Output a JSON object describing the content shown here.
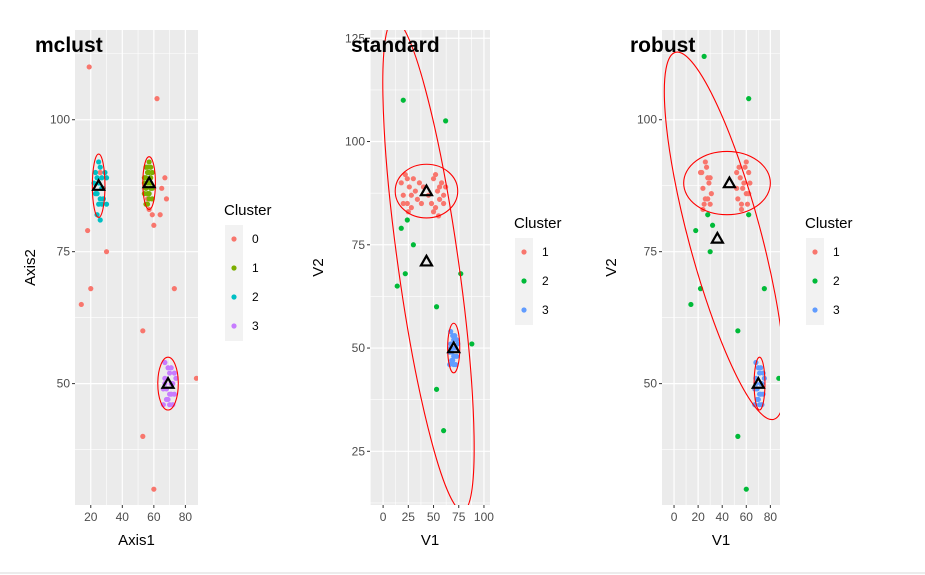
{
  "chart_data": [
    {
      "type": "scatter",
      "title": "mclust",
      "xlabel": "Axis1",
      "ylabel": "Axis2",
      "xlim": [
        10,
        88
      ],
      "ylim": [
        27,
        117
      ],
      "xticks": [
        20,
        40,
        60,
        80
      ],
      "yticks": [
        50,
        75,
        100
      ],
      "grid": true,
      "legend_title": "Cluster",
      "legend_placement": "right",
      "clusters": [
        {
          "name": "0",
          "color": "#F8766D",
          "points": [
            [
              19,
              110
            ],
            [
              62,
              104
            ],
            [
              14,
              65
            ],
            [
              18,
              79
            ],
            [
              20,
              68
            ],
            [
              30,
              75
            ],
            [
              53,
              60
            ],
            [
              65,
              87
            ],
            [
              67,
              89
            ],
            [
              68,
              85
            ],
            [
              73,
              68
            ],
            [
              87,
              51
            ],
            [
              53,
              40
            ],
            [
              60,
              30
            ],
            [
              57,
              83
            ],
            [
              56,
              85
            ],
            [
              59,
              82
            ],
            [
              60,
              80
            ],
            [
              64,
              82
            ],
            [
              26,
              90
            ]
          ]
        },
        {
          "name": "1",
          "color": "#7CAE00",
          "points": [
            [
              54,
              89
            ],
            [
              55,
              87
            ],
            [
              56,
              91
            ],
            [
              57,
              86
            ],
            [
              58,
              88
            ],
            [
              59,
              85
            ],
            [
              55,
              84
            ],
            [
              56,
              90
            ],
            [
              57,
              92
            ],
            [
              58,
              89
            ],
            [
              54,
              86
            ],
            [
              55,
              91
            ],
            [
              56,
              88
            ],
            [
              57,
              85
            ],
            [
              58,
              87
            ],
            [
              59,
              90
            ],
            [
              55,
              89
            ],
            [
              56,
              86
            ],
            [
              57,
              88
            ],
            [
              58,
              91
            ],
            [
              54,
              88
            ],
            [
              59,
              87
            ],
            [
              56,
              84
            ],
            [
              57,
              90
            ]
          ]
        },
        {
          "name": "2",
          "color": "#00BFC4",
          "points": [
            [
              23,
              86
            ],
            [
              24,
              89
            ],
            [
              25,
              84
            ],
            [
              26,
              91
            ],
            [
              27,
              87
            ],
            [
              28,
              85
            ],
            [
              29,
              90
            ],
            [
              24,
              82
            ],
            [
              25,
              88
            ],
            [
              26,
              85
            ],
            [
              27,
              89
            ],
            [
              23,
              90
            ],
            [
              28,
              87
            ],
            [
              30,
              84
            ],
            [
              22,
              88
            ],
            [
              25,
              92
            ],
            [
              26,
              81
            ],
            [
              27,
              84
            ],
            [
              24,
              86
            ],
            [
              30,
              89
            ]
          ]
        },
        {
          "name": "3",
          "color": "#C77CFF",
          "points": [
            [
              66,
              49
            ],
            [
              67,
              51
            ],
            [
              68,
              47
            ],
            [
              69,
              53
            ],
            [
              70,
              48
            ],
            [
              71,
              50
            ],
            [
              72,
              46
            ],
            [
              73,
              52
            ],
            [
              67,
              54
            ],
            [
              68,
              49
            ],
            [
              69,
              47
            ],
            [
              70,
              52
            ],
            [
              71,
              48
            ],
            [
              72,
              50
            ],
            [
              66,
              46
            ],
            [
              73,
              48
            ],
            [
              74,
              51
            ],
            [
              67,
              50
            ],
            [
              70,
              46
            ],
            [
              71,
              53
            ]
          ]
        }
      ],
      "centroids": [
        [
          25,
          87.5
        ],
        [
          57,
          88
        ],
        [
          69,
          50
        ]
      ],
      "ellipses": [
        {
          "center": [
            25,
            87.5
          ],
          "rx": 4,
          "ry": 6
        },
        {
          "center": [
            57,
            88
          ],
          "rx": 4,
          "ry": 5
        },
        {
          "center": [
            69,
            50
          ],
          "rx": 6.5,
          "ry": 5
        }
      ]
    },
    {
      "type": "scatter",
      "title": "standard",
      "xlabel": "V1",
      "ylabel": "V2",
      "xlim": [
        -13,
        106
      ],
      "ylim": [
        12,
        127
      ],
      "xticks": [
        0,
        25,
        50,
        75,
        100
      ],
      "yticks": [
        25,
        50,
        75,
        100,
        125
      ],
      "grid": true,
      "legend_title": "Cluster",
      "legend_placement": "right",
      "clusters": [
        {
          "name": "1",
          "color": "#F8766D",
          "points": [
            [
              18,
              90
            ],
            [
              20,
              87
            ],
            [
              22,
              92
            ],
            [
              24,
              85
            ],
            [
              26,
              89
            ],
            [
              28,
              84
            ],
            [
              30,
              91
            ],
            [
              32,
              88
            ],
            [
              34,
              86
            ],
            [
              36,
              90
            ],
            [
              38,
              85
            ],
            [
              40,
              89
            ],
            [
              45,
              87
            ],
            [
              50,
              91
            ],
            [
              52,
              84
            ],
            [
              54,
              88
            ],
            [
              56,
              86
            ],
            [
              58,
              90
            ],
            [
              60,
              85
            ],
            [
              62,
              89
            ],
            [
              20,
              85
            ],
            [
              24,
              91
            ],
            [
              28,
              87
            ],
            [
              48,
              85
            ],
            [
              52,
              92
            ],
            [
              56,
              89
            ],
            [
              60,
              87
            ],
            [
              25,
              83
            ],
            [
              50,
              83
            ],
            [
              55,
              82
            ]
          ]
        },
        {
          "name": "2",
          "color": "#00BA38",
          "points": [
            [
              20,
              110
            ],
            [
              62,
              105
            ],
            [
              14,
              65
            ],
            [
              18,
              79
            ],
            [
              22,
              68
            ],
            [
              30,
              75
            ],
            [
              53,
              60
            ],
            [
              77,
              68
            ],
            [
              88,
              51
            ],
            [
              53,
              40
            ],
            [
              60,
              30
            ],
            [
              24,
              81
            ]
          ]
        },
        {
          "name": "3",
          "color": "#619CFF",
          "points": [
            [
              66,
              49
            ],
            [
              67,
              51
            ],
            [
              68,
              47
            ],
            [
              69,
              53
            ],
            [
              70,
              48
            ],
            [
              71,
              50
            ],
            [
              72,
              46
            ],
            [
              73,
              52
            ],
            [
              67,
              54
            ],
            [
              68,
              49
            ],
            [
              69,
              47
            ],
            [
              70,
              52
            ],
            [
              71,
              48
            ],
            [
              72,
              50
            ],
            [
              66,
              46
            ],
            [
              73,
              48
            ],
            [
              74,
              51
            ],
            [
              67,
              50
            ],
            [
              70,
              46
            ],
            [
              71,
              53
            ]
          ]
        }
      ],
      "centroids": [
        [
          43,
          88
        ],
        [
          43,
          71
        ],
        [
          70,
          50
        ]
      ],
      "ellipses": [
        {
          "center": [
            43,
            88
          ],
          "rx": 31,
          "ry": 6.5
        },
        {
          "center": [
            45,
            70
          ],
          "rx": 30,
          "ry": 60,
          "rot": -8
        },
        {
          "center": [
            70,
            50
          ],
          "rx": 6,
          "ry": 6
        }
      ]
    },
    {
      "type": "scatter",
      "title": "robust",
      "xlabel": "V1",
      "ylabel": "V2",
      "xlim": [
        -10,
        88
      ],
      "ylim": [
        27,
        117
      ],
      "xticks": [
        0,
        20,
        40,
        60,
        80
      ],
      "yticks": [
        50,
        75,
        100
      ],
      "grid": true,
      "legend_title": "Cluster",
      "legend_placement": "right",
      "clusters": [
        {
          "name": "1",
          "color": "#F8766D",
          "points": [
            [
              22,
              90
            ],
            [
              24,
              87
            ],
            [
              26,
              92
            ],
            [
              28,
              85
            ],
            [
              30,
              89
            ],
            [
              25,
              84
            ],
            [
              27,
              91
            ],
            [
              29,
              88
            ],
            [
              31,
              86
            ],
            [
              23,
              90
            ],
            [
              26,
              85
            ],
            [
              28,
              89
            ],
            [
              52,
              87
            ],
            [
              54,
              91
            ],
            [
              56,
              84
            ],
            [
              58,
              88
            ],
            [
              60,
              86
            ],
            [
              62,
              90
            ],
            [
              53,
              85
            ],
            [
              55,
              89
            ],
            [
              57,
              87
            ],
            [
              59,
              91
            ],
            [
              61,
              84
            ],
            [
              63,
              88
            ],
            [
              24,
              83
            ],
            [
              56,
              83
            ],
            [
              60,
              92
            ],
            [
              30,
              84
            ],
            [
              52,
              90
            ],
            [
              62,
              86
            ]
          ]
        },
        {
          "name": "2",
          "color": "#00BA38",
          "points": [
            [
              25,
              112
            ],
            [
              62,
              104
            ],
            [
              14,
              65
            ],
            [
              18,
              79
            ],
            [
              22,
              68
            ],
            [
              30,
              75
            ],
            [
              53,
              60
            ],
            [
              75,
              68
            ],
            [
              87,
              51
            ],
            [
              53,
              40
            ],
            [
              60,
              30
            ],
            [
              62,
              82
            ],
            [
              28,
              82
            ],
            [
              32,
              80
            ]
          ]
        },
        {
          "name": "3",
          "color": "#619CFF",
          "points": [
            [
              67,
              49
            ],
            [
              68,
              51
            ],
            [
              69,
              47
            ],
            [
              70,
              53
            ],
            [
              71,
              48
            ],
            [
              72,
              50
            ],
            [
              73,
              46
            ],
            [
              74,
              52
            ],
            [
              68,
              54
            ],
            [
              69,
              49
            ],
            [
              70,
              47
            ],
            [
              71,
              52
            ],
            [
              72,
              48
            ],
            [
              73,
              50
            ],
            [
              67,
              46
            ],
            [
              74,
              48
            ],
            [
              75,
              51
            ],
            [
              68,
              50
            ],
            [
              71,
              46
            ],
            [
              72,
              53
            ]
          ]
        }
      ],
      "centroids": [
        [
          46,
          88
        ],
        [
          36,
          77.5
        ],
        [
          70,
          50
        ]
      ],
      "ellipses": [
        {
          "center": [
            44,
            88
          ],
          "rx": 36,
          "ry": 6
        },
        {
          "center": [
            42,
            78
          ],
          "rx": 30,
          "ry": 36,
          "rot": -15
        },
        {
          "center": [
            71,
            50
          ],
          "rx": 4.5,
          "ry": 5
        }
      ]
    }
  ]
}
